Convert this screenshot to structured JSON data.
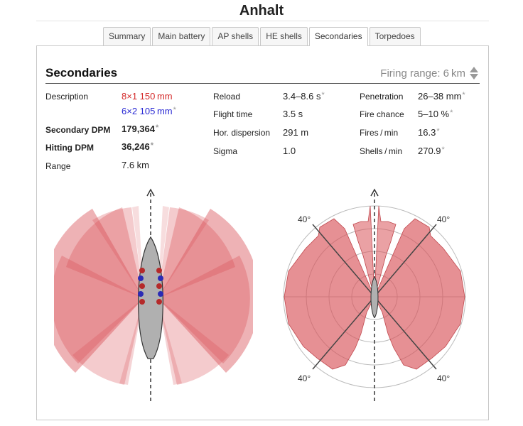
{
  "page": {
    "title": "Anhalt"
  },
  "tabs": [
    {
      "label": "Summary"
    },
    {
      "label": "Main battery"
    },
    {
      "label": "AP shells"
    },
    {
      "label": "HE shells"
    },
    {
      "label": "Secondaries",
      "active": true
    },
    {
      "label": "Torpedoes"
    }
  ],
  "section": {
    "heading": "Secondaries",
    "firing_range_label": "Firing range: 6 km"
  },
  "stats": {
    "description_label": "Description",
    "guns_a": "8×1 150 mm",
    "guns_b": "6×2 105 mm",
    "secondary_dpm_label": "Secondary DPM",
    "secondary_dpm": "179,364",
    "hitting_dpm_label": "Hitting DPM",
    "hitting_dpm": "36,246",
    "range_label": "Range",
    "range": "7.6 km",
    "reload_label": "Reload",
    "reload": "3.4–8.6 s",
    "flight_time_label": "Flight time",
    "flight_time": "3.5 s",
    "hor_dispersion_label": "Hor. dispersion",
    "hor_dispersion": "291 m",
    "sigma_label": "Sigma",
    "sigma": "1.0",
    "penetration_label": "Penetration",
    "penetration": "26–38 mm",
    "fire_chance_label": "Fire chance",
    "fire_chance": "5–10 %",
    "fires_per_min_label": "Fires / min",
    "fires_per_min": "16.3",
    "shells_per_min_label": "Shells / min",
    "shells_per_min": "270.9",
    "star": "*"
  },
  "polar_chart": {
    "angle_labels": [
      "40°",
      "40°",
      "40°",
      "40°"
    ]
  },
  "colors": {
    "arc_fill": "#d9545a",
    "gun_red": "#b52a2a",
    "gun_blue": "#2b2bb5",
    "hull": "#b0b0b0"
  }
}
